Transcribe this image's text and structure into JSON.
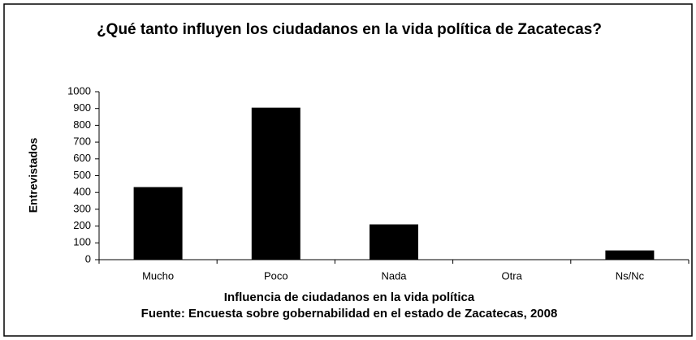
{
  "chart_data": {
    "type": "bar",
    "title": "¿Qué tanto influyen los ciudadanos en la vida política de Zacatecas?",
    "x_label": "Influencia de ciudadanos en la vida política",
    "source": "Fuente: Encuesta sobre gobernabilidad en el estado de Zacatecas, 2008",
    "y_label": "Entrevistados",
    "categories": [
      "Mucho",
      "Poco",
      "Nada",
      "Otra",
      "Ns/Nc"
    ],
    "values": [
      432,
      905,
      210,
      0,
      55
    ],
    "color": "#000000",
    "ylim": [
      0,
      1000
    ],
    "yticks": [
      0,
      100,
      200,
      300,
      400,
      500,
      600,
      700,
      800,
      900,
      1000
    ],
    "grid": false
  }
}
